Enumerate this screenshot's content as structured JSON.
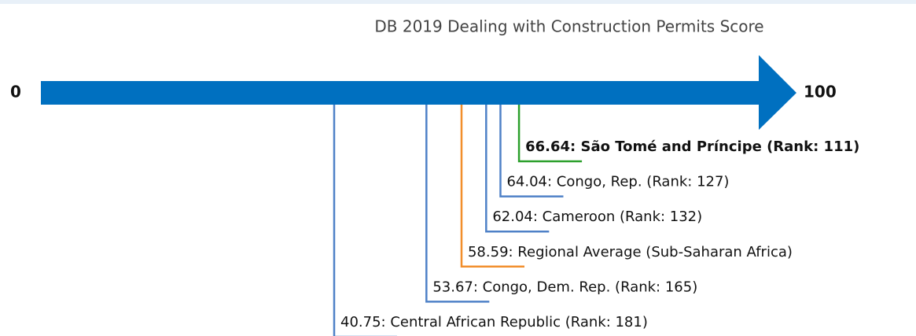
{
  "chart_data": {
    "type": "marker",
    "title": "DB 2019 Dealing with Construction Permits Score",
    "xlim": [
      0,
      100
    ],
    "xticks": [
      0,
      100
    ],
    "axis_color": "#0070c0",
    "values": [
      66.64,
      64.04,
      62.04,
      58.59,
      53.67,
      40.75
    ],
    "value_labels": [
      "66.64: São Tomé and Príncipe (Rank: 111)",
      "64.04: Congo, Rep. (Rank: 127)",
      "62.04: Cameroon (Rank: 132)",
      "58.59: Regional Average (Sub-Saharan Africa)",
      "53.67: Congo, Dem. Rep. (Rank: 165)",
      "40.75: Central African Republic (Rank: 181)"
    ],
    "colors": [
      "#2ca02c",
      "#4f81c7",
      "#4f81c7",
      "#f28e2b",
      "#4f81c7",
      "#4f81c7"
    ],
    "bold": [
      true,
      false,
      false,
      false,
      false,
      false
    ]
  }
}
